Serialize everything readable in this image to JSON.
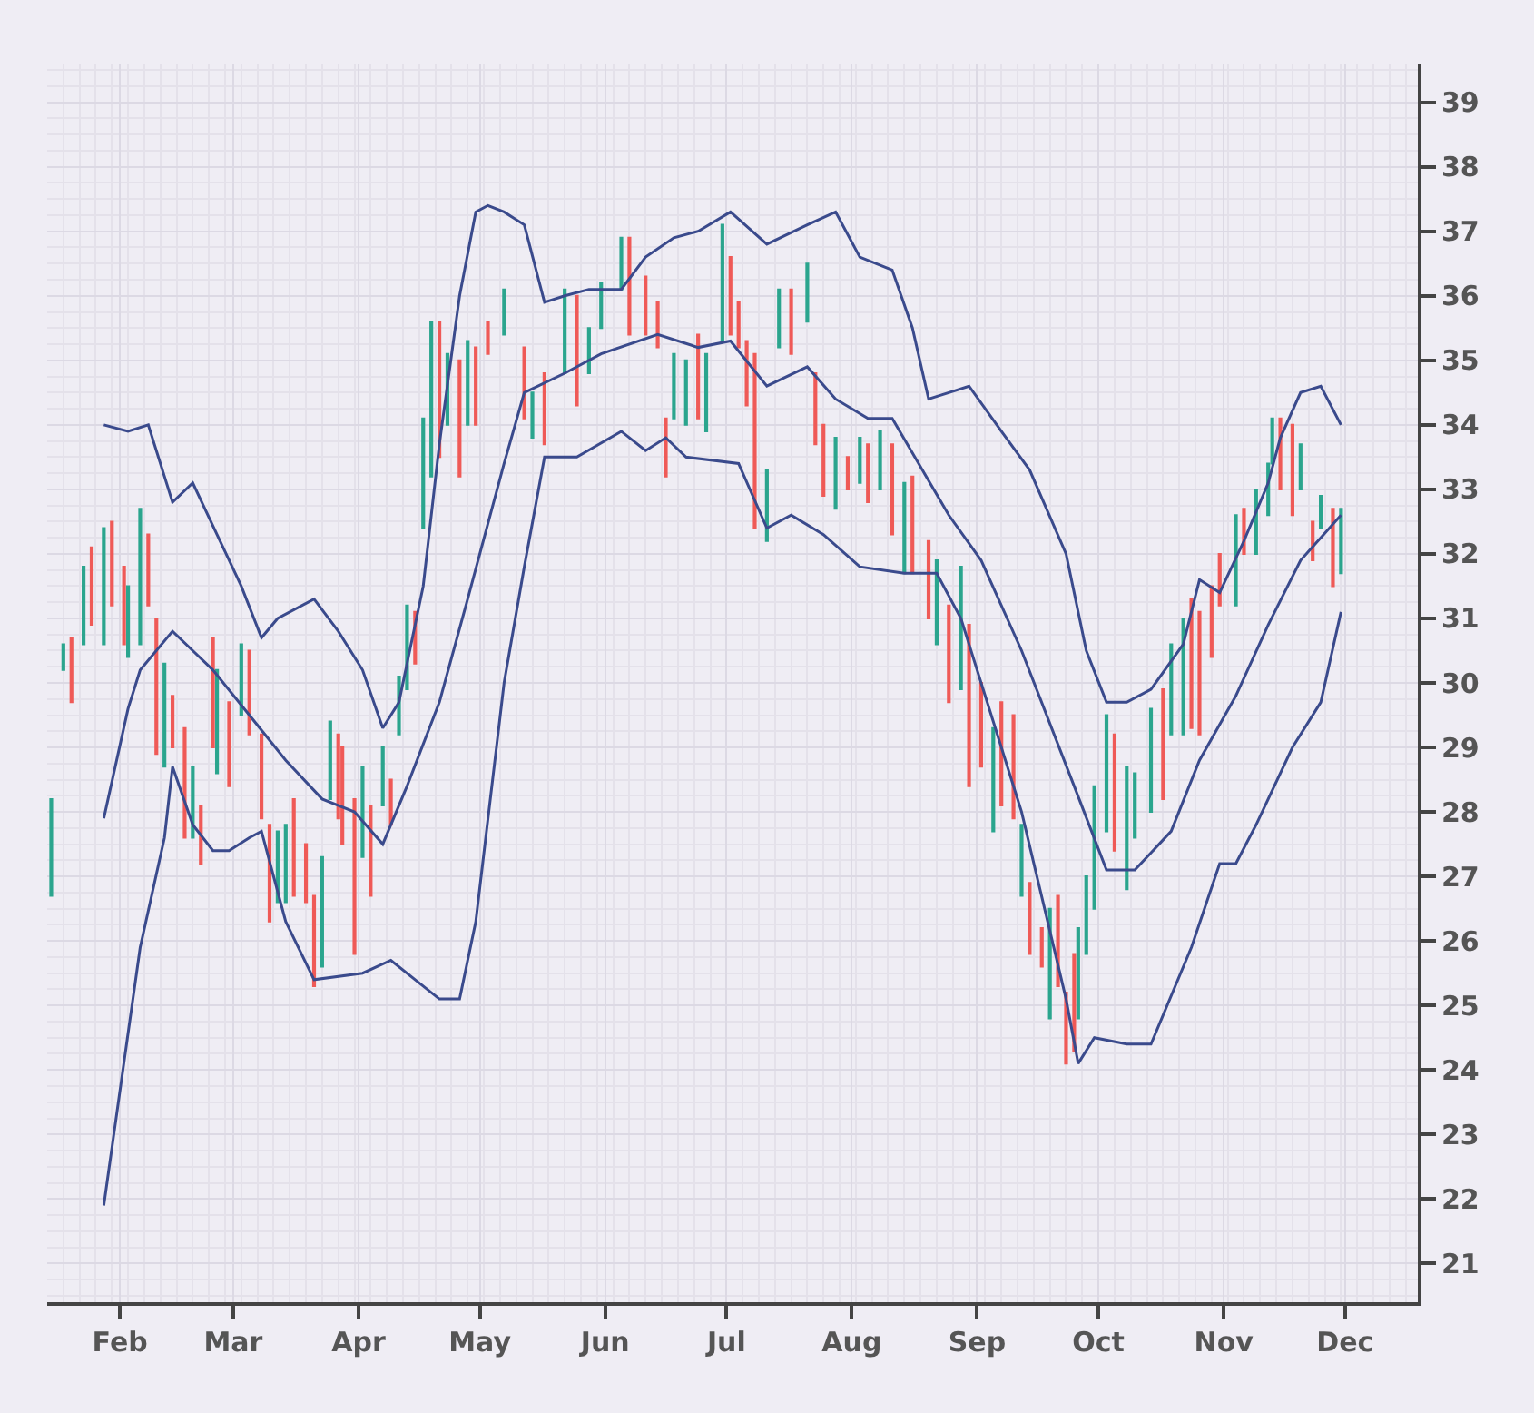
{
  "chart_data": {
    "type": "candlestick",
    "x": [
      "--01-15",
      "--01-18",
      "--01-20",
      "--01-23",
      "--01-25",
      "--01-28",
      "--01-30",
      "--02-02",
      "--02-03",
      "--02-06",
      "--02-08",
      "--02-10",
      "--02-12",
      "--02-14",
      "--02-17",
      "--02-19",
      "--02-21",
      "--02-24",
      "--02-25",
      "--02-28",
      "--03-03",
      "--03-05",
      "--03-08",
      "--03-10",
      "--03-12",
      "--03-14",
      "--03-16",
      "--03-19",
      "--03-21",
      "--03-23",
      "--03-25",
      "--03-27",
      "--03-28",
      "--03-31",
      "--04-02",
      "--04-04",
      "--04-07",
      "--04-09",
      "--04-11",
      "--04-13",
      "--04-15",
      "--04-17",
      "--04-19",
      "--04-21",
      "--04-23",
      "--04-26",
      "--04-28",
      "--04-30",
      "--05-03",
      "--05-07",
      "--05-12",
      "--05-14",
      "--05-17",
      "--05-22",
      "--05-25",
      "--05-28",
      "--05-31",
      "--06-05",
      "--06-07",
      "--06-11",
      "--06-14",
      "--06-16",
      "--06-18",
      "--06-21",
      "--06-24",
      "--06-26",
      "--06-30",
      "--07-02",
      "--07-04",
      "--07-06",
      "--07-08",
      "--07-11",
      "--07-14",
      "--07-17",
      "--07-21",
      "--07-23",
      "--07-25",
      "--07-28",
      "--07-31",
      "--08-03",
      "--08-05",
      "--08-08",
      "--08-11",
      "--08-14",
      "--08-16",
      "--08-20",
      "--08-22",
      "--08-25",
      "--08-28",
      "--08-30",
      "--09-02",
      "--09-05",
      "--09-07",
      "--09-10",
      "--09-12",
      "--09-14",
      "--09-17",
      "--09-19",
      "--09-21",
      "--09-23",
      "--09-25",
      "--09-26",
      "--09-28",
      "--09-30",
      "--10-03",
      "--10-05",
      "--10-08",
      "--10-10",
      "--10-14",
      "--10-17",
      "--10-19",
      "--10-22",
      "--10-24",
      "--10-26",
      "--10-29",
      "--10-31",
      "--11-04",
      "--11-06",
      "--11-09",
      "--11-12",
      "--11-13",
      "--11-15",
      "--11-18",
      "--11-20",
      "--11-23",
      "--11-25",
      "--11-28",
      "--11-30"
    ],
    "ohlc": [
      [
        26.7,
        28.2,
        26.7,
        28.2
      ],
      [
        30.2,
        30.6,
        30.2,
        30.6
      ],
      [
        30.7,
        30.7,
        29.7,
        29.7
      ],
      [
        30.6,
        31.8,
        30.6,
        31.8
      ],
      [
        32.1,
        32.1,
        30.9,
        30.9
      ],
      [
        30.6,
        32.4,
        30.6,
        32.4
      ],
      [
        32.5,
        32.5,
        31.2,
        31.2
      ],
      [
        31.8,
        31.8,
        30.6,
        30.6
      ],
      [
        30.4,
        31.5,
        30.4,
        31.5
      ],
      [
        30.6,
        32.7,
        30.6,
        32.7
      ],
      [
        32.3,
        32.3,
        31.2,
        31.2
      ],
      [
        31.0,
        31.0,
        28.9,
        28.9
      ],
      [
        28.7,
        30.3,
        28.7,
        30.3
      ],
      [
        29.8,
        29.8,
        29.0,
        29.0
      ],
      [
        29.3,
        29.3,
        27.6,
        27.6
      ],
      [
        27.6,
        28.7,
        27.6,
        28.7
      ],
      [
        28.1,
        28.1,
        27.2,
        27.2
      ],
      [
        30.7,
        30.7,
        29.0,
        29.0
      ],
      [
        28.6,
        30.2,
        28.6,
        30.2
      ],
      [
        29.7,
        29.7,
        28.4,
        28.4
      ],
      [
        29.5,
        30.6,
        29.5,
        30.6
      ],
      [
        30.5,
        30.5,
        29.2,
        29.2
      ],
      [
        29.2,
        29.2,
        27.9,
        27.9
      ],
      [
        27.8,
        27.8,
        26.3,
        26.3
      ],
      [
        26.6,
        27.7,
        26.6,
        27.7
      ],
      [
        26.6,
        27.8,
        26.6,
        27.8
      ],
      [
        28.2,
        28.2,
        26.7,
        26.7
      ],
      [
        27.5,
        27.5,
        26.6,
        26.6
      ],
      [
        26.7,
        26.7,
        25.3,
        25.3
      ],
      [
        25.6,
        27.3,
        25.6,
        27.3
      ],
      [
        28.2,
        29.4,
        28.2,
        29.4
      ],
      [
        29.2,
        29.2,
        27.9,
        27.9
      ],
      [
        29.0,
        29.0,
        27.5,
        27.5
      ],
      [
        28.2,
        28.2,
        25.8,
        25.8
      ],
      [
        27.3,
        28.7,
        27.3,
        28.7
      ],
      [
        28.1,
        28.1,
        26.7,
        26.7
      ],
      [
        28.1,
        29.0,
        28.1,
        29.0
      ],
      [
        28.5,
        28.5,
        27.8,
        27.8
      ],
      [
        29.2,
        30.1,
        29.2,
        30.1
      ],
      [
        29.9,
        31.2,
        29.9,
        31.2
      ],
      [
        31.1,
        31.1,
        30.3,
        30.3
      ],
      [
        32.4,
        34.1,
        32.4,
        34.1
      ],
      [
        33.2,
        35.6,
        33.2,
        35.6
      ],
      [
        35.6,
        35.6,
        33.5,
        33.5
      ],
      [
        34.0,
        35.1,
        34.0,
        35.1
      ],
      [
        35.0,
        35.0,
        33.2,
        33.2
      ],
      [
        34.0,
        35.3,
        34.0,
        35.3
      ],
      [
        35.2,
        35.2,
        34.0,
        34.0
      ],
      [
        35.6,
        35.6,
        35.1,
        35.1
      ],
      [
        35.4,
        36.1,
        35.4,
        36.1
      ],
      [
        35.2,
        35.2,
        34.1,
        34.1
      ],
      [
        33.8,
        34.5,
        33.8,
        34.5
      ],
      [
        34.8,
        34.8,
        33.7,
        33.7
      ],
      [
        34.8,
        36.1,
        34.8,
        36.1
      ],
      [
        36.0,
        36.0,
        34.3,
        34.3
      ],
      [
        34.8,
        35.5,
        34.8,
        35.5
      ],
      [
        35.5,
        36.2,
        35.5,
        36.2
      ],
      [
        36.1,
        36.9,
        36.1,
        36.9
      ],
      [
        36.9,
        36.9,
        35.4,
        35.4
      ],
      [
        36.3,
        36.3,
        35.4,
        35.4
      ],
      [
        35.9,
        35.9,
        35.2,
        35.2
      ],
      [
        34.1,
        34.1,
        33.2,
        33.2
      ],
      [
        34.1,
        35.1,
        34.1,
        35.1
      ],
      [
        34.0,
        35.0,
        34.0,
        35.0
      ],
      [
        35.4,
        35.4,
        34.1,
        34.1
      ],
      [
        33.9,
        35.1,
        33.9,
        35.1
      ],
      [
        35.3,
        37.1,
        35.3,
        37.1
      ],
      [
        36.6,
        36.6,
        35.4,
        35.4
      ],
      [
        35.9,
        35.9,
        35.2,
        35.2
      ],
      [
        35.3,
        35.3,
        34.3,
        34.3
      ],
      [
        35.1,
        35.1,
        32.4,
        32.4
      ],
      [
        32.2,
        33.3,
        32.2,
        33.3
      ],
      [
        35.2,
        36.1,
        35.2,
        36.1
      ],
      [
        36.1,
        36.1,
        35.1,
        35.1
      ],
      [
        35.6,
        36.5,
        35.6,
        36.5
      ],
      [
        34.8,
        34.8,
        33.7,
        33.7
      ],
      [
        34.0,
        34.0,
        32.9,
        32.9
      ],
      [
        32.7,
        33.8,
        32.7,
        33.8
      ],
      [
        33.5,
        33.5,
        33.0,
        33.0
      ],
      [
        33.1,
        33.8,
        33.1,
        33.8
      ],
      [
        33.7,
        33.7,
        32.8,
        32.8
      ],
      [
        33.0,
        33.9,
        33.0,
        33.9
      ],
      [
        33.7,
        33.7,
        32.3,
        32.3
      ],
      [
        31.7,
        33.1,
        31.7,
        33.1
      ],
      [
        33.2,
        33.2,
        31.7,
        31.7
      ],
      [
        32.2,
        32.2,
        31.0,
        31.0
      ],
      [
        30.6,
        31.9,
        30.6,
        31.9
      ],
      [
        31.2,
        31.2,
        29.7,
        29.7
      ],
      [
        29.9,
        31.8,
        29.9,
        31.8
      ],
      [
        30.9,
        30.9,
        28.4,
        28.4
      ],
      [
        30.0,
        30.0,
        28.7,
        28.7
      ],
      [
        27.7,
        29.3,
        27.7,
        29.3
      ],
      [
        29.7,
        29.7,
        28.1,
        28.1
      ],
      [
        29.5,
        29.5,
        27.9,
        27.9
      ],
      [
        26.7,
        27.8,
        26.7,
        27.8
      ],
      [
        26.9,
        26.9,
        25.8,
        25.8
      ],
      [
        26.2,
        26.2,
        25.6,
        25.6
      ],
      [
        24.8,
        26.5,
        24.8,
        26.5
      ],
      [
        26.7,
        26.7,
        25.3,
        25.3
      ],
      [
        25.2,
        25.2,
        24.1,
        24.1
      ],
      [
        25.8,
        25.8,
        24.3,
        24.3
      ],
      [
        24.8,
        26.2,
        24.8,
        26.2
      ],
      [
        25.8,
        27.0,
        25.8,
        27.0
      ],
      [
        26.5,
        28.4,
        26.5,
        28.4
      ],
      [
        27.7,
        29.5,
        27.7,
        29.5
      ],
      [
        29.2,
        29.2,
        27.4,
        27.4
      ],
      [
        26.8,
        28.7,
        26.8,
        28.7
      ],
      [
        27.6,
        28.6,
        27.6,
        28.6
      ],
      [
        28.0,
        29.6,
        28.0,
        29.6
      ],
      [
        29.9,
        29.9,
        28.2,
        28.2
      ],
      [
        29.2,
        30.6,
        29.2,
        30.6
      ],
      [
        29.2,
        31.0,
        29.2,
        31.0
      ],
      [
        31.3,
        31.3,
        29.3,
        29.3
      ],
      [
        31.1,
        31.1,
        29.2,
        29.2
      ],
      [
        31.5,
        31.5,
        30.4,
        30.4
      ],
      [
        32.0,
        32.0,
        31.2,
        31.2
      ],
      [
        31.2,
        32.6,
        31.2,
        32.6
      ],
      [
        32.7,
        32.7,
        32.0,
        32.0
      ],
      [
        32.0,
        33.0,
        32.0,
        33.0
      ],
      [
        32.6,
        33.4,
        32.6,
        33.4
      ],
      [
        33.4,
        34.1,
        33.4,
        34.1
      ],
      [
        34.1,
        34.1,
        33.0,
        33.0
      ],
      [
        34.0,
        34.0,
        32.6,
        32.6
      ],
      [
        33.0,
        33.7,
        33.0,
        33.7
      ],
      [
        32.5,
        32.5,
        31.9,
        31.9
      ],
      [
        32.4,
        32.9,
        32.4,
        32.9
      ],
      [
        32.7,
        32.7,
        31.5,
        31.5
      ],
      [
        31.7,
        32.7,
        31.7,
        32.7
      ]
    ],
    "colors": [
      "#2ba58e",
      "#2ba58e",
      "#ef5a57",
      "#2ba58e",
      "#ef5a57",
      "#2ba58e",
      "#ef5a57",
      "#ef5a57",
      "#2ba58e",
      "#2ba58e",
      "#ef5a57",
      "#ef5a57",
      "#2ba58e",
      "#ef5a57",
      "#ef5a57",
      "#2ba58e",
      "#ef5a57",
      "#ef5a57",
      "#2ba58e",
      "#ef5a57",
      "#2ba58e",
      "#ef5a57",
      "#ef5a57",
      "#ef5a57",
      "#2ba58e",
      "#2ba58e",
      "#ef5a57",
      "#ef5a57",
      "#ef5a57",
      "#2ba58e",
      "#2ba58e",
      "#ef5a57",
      "#ef5a57",
      "#ef5a57",
      "#2ba58e",
      "#ef5a57",
      "#2ba58e",
      "#ef5a57",
      "#2ba58e",
      "#2ba58e",
      "#ef5a57",
      "#2ba58e",
      "#2ba58e",
      "#ef5a57",
      "#2ba58e",
      "#ef5a57",
      "#2ba58e",
      "#ef5a57",
      "#ef5a57",
      "#2ba58e",
      "#ef5a57",
      "#2ba58e",
      "#ef5a57",
      "#2ba58e",
      "#ef5a57",
      "#2ba58e",
      "#2ba58e",
      "#2ba58e",
      "#ef5a57",
      "#ef5a57",
      "#ef5a57",
      "#ef5a57",
      "#2ba58e",
      "#2ba58e",
      "#ef5a57",
      "#2ba58e",
      "#2ba58e",
      "#ef5a57",
      "#ef5a57",
      "#ef5a57",
      "#ef5a57",
      "#2ba58e",
      "#2ba58e",
      "#ef5a57",
      "#2ba58e",
      "#ef5a57",
      "#ef5a57",
      "#2ba58e",
      "#ef5a57",
      "#2ba58e",
      "#ef5a57",
      "#2ba58e",
      "#ef5a57",
      "#2ba58e",
      "#ef5a57",
      "#ef5a57",
      "#2ba58e",
      "#ef5a57",
      "#2ba58e",
      "#ef5a57",
      "#ef5a57",
      "#2ba58e",
      "#ef5a57",
      "#ef5a57",
      "#2ba58e",
      "#ef5a57",
      "#ef5a57",
      "#2ba58e",
      "#ef5a57",
      "#ef5a57",
      "#ef5a57",
      "#2ba58e",
      "#2ba58e",
      "#2ba58e",
      "#2ba58e",
      "#ef5a57",
      "#2ba58e",
      "#2ba58e",
      "#2ba58e",
      "#ef5a57",
      "#2ba58e",
      "#2ba58e",
      "#ef5a57",
      "#ef5a57",
      "#ef5a57",
      "#ef5a57",
      "#2ba58e",
      "#ef5a57",
      "#2ba58e",
      "#2ba58e",
      "#2ba58e",
      "#ef5a57",
      "#ef5a57",
      "#2ba58e",
      "#ef5a57",
      "#2ba58e",
      "#ef5a57",
      "#2ba58e"
    ],
    "series": [
      {
        "type": "line",
        "color": "#3a4a8c",
        "x": [
          "--01-28",
          "--02-03",
          "--02-08",
          "--02-14",
          "--02-19",
          "--02-25",
          "--03-03",
          "--03-08",
          "--03-12",
          "--03-21",
          "--03-27",
          "--04-02",
          "--04-07",
          "--04-11",
          "--04-17",
          "--04-21",
          "--04-26",
          "--04-30",
          "--05-03",
          "--05-07",
          "--05-12",
          "--05-17",
          "--05-22",
          "--05-28",
          "--06-05",
          "--06-11",
          "--06-18",
          "--06-24",
          "--07-02",
          "--07-11",
          "--07-21",
          "--07-28",
          "--08-03",
          "--08-11",
          "--08-16",
          "--08-20",
          "--08-25",
          "--08-30",
          "--09-07",
          "--09-14",
          "--09-23",
          "--09-28",
          "--10-03",
          "--10-08",
          "--10-14",
          "--10-22",
          "--10-26",
          "--10-31",
          "--11-06",
          "--11-12",
          "--11-15",
          "--11-20",
          "--11-25",
          "--11-30"
        ],
        "values": [
          34.0,
          33.9,
          34.0,
          32.8,
          33.1,
          32.3,
          31.5,
          30.7,
          31.0,
          31.3,
          30.8,
          30.2,
          29.3,
          29.7,
          31.5,
          33.7,
          36.0,
          37.3,
          37.4,
          37.3,
          37.1,
          35.9,
          36.0,
          36.1,
          36.1,
          36.6,
          36.9,
          37.0,
          37.3,
          36.8,
          37.1,
          37.3,
          36.6,
          36.4,
          35.5,
          34.4,
          34.5,
          34.6,
          33.9,
          33.3,
          32.0,
          30.5,
          29.7,
          29.7,
          29.9,
          30.6,
          31.6,
          31.4,
          32.2,
          33.1,
          33.8,
          34.5,
          34.6,
          34.0
        ]
      },
      {
        "type": "line",
        "color": "#3a4a8c",
        "x": [
          "--01-28",
          "--02-03",
          "--02-06",
          "--02-14",
          "--02-19",
          "--02-24",
          "--03-05",
          "--03-14",
          "--03-23",
          "--03-31",
          "--04-07",
          "--04-13",
          "--04-21",
          "--04-28",
          "--05-07",
          "--05-12",
          "--05-22",
          "--05-31",
          "--06-14",
          "--06-24",
          "--07-02",
          "--07-11",
          "--07-21",
          "--07-28",
          "--08-05",
          "--08-11",
          "--08-25",
          "--09-02",
          "--09-12",
          "--09-25",
          "--10-03",
          "--10-10",
          "--10-19",
          "--10-26",
          "--11-04",
          "--11-12",
          "--11-20",
          "--11-30"
        ],
        "values": [
          27.9,
          29.6,
          30.2,
          30.8,
          30.5,
          30.2,
          29.5,
          28.8,
          28.2,
          28.0,
          27.5,
          28.4,
          29.7,
          31.3,
          33.4,
          34.5,
          34.8,
          35.1,
          35.4,
          35.2,
          35.3,
          34.6,
          34.9,
          34.4,
          34.1,
          34.1,
          32.6,
          31.9,
          30.5,
          28.4,
          27.1,
          27.1,
          27.7,
          28.8,
          29.8,
          30.9,
          31.9,
          32.6
        ]
      },
      {
        "type": "line",
        "color": "#3a4a8c",
        "x": [
          "--01-28",
          "--02-06",
          "--02-12",
          "--02-14",
          "--02-19",
          "--02-24",
          "--02-28",
          "--03-05",
          "--03-08",
          "--03-14",
          "--03-21",
          "--04-02",
          "--04-09",
          "--04-15",
          "--04-21",
          "--04-26",
          "--04-30",
          "--05-07",
          "--05-12",
          "--05-17",
          "--05-25",
          "--06-05",
          "--06-11",
          "--06-16",
          "--06-21",
          "--07-04",
          "--07-11",
          "--07-17",
          "--07-25",
          "--08-03",
          "--08-14",
          "--08-22",
          "--08-28",
          "--09-12",
          "--09-23",
          "--09-26",
          "--09-30",
          "--10-08",
          "--10-14",
          "--10-24",
          "--10-31",
          "--11-04",
          "--11-09",
          "--11-18",
          "--11-25",
          "--11-30"
        ],
        "values": [
          21.9,
          25.9,
          27.6,
          28.7,
          27.8,
          27.4,
          27.4,
          27.6,
          27.7,
          26.3,
          25.4,
          25.5,
          25.7,
          25.4,
          25.1,
          25.1,
          26.3,
          30.0,
          31.8,
          33.5,
          33.5,
          33.9,
          33.6,
          33.8,
          33.5,
          33.4,
          32.4,
          32.6,
          32.3,
          31.8,
          31.7,
          31.7,
          31.0,
          28.0,
          25.1,
          24.1,
          24.5,
          24.4,
          24.4,
          25.9,
          27.2,
          27.2,
          27.8,
          29.0,
          29.7,
          31.1
        ]
      }
    ],
    "xlim": [
      "--01-14",
      "--12-19"
    ],
    "xticks": [
      {
        "value": "--02-01",
        "label": "Feb"
      },
      {
        "value": "--03-01",
        "label": "Mar"
      },
      {
        "value": "--04-01",
        "label": "Apr"
      },
      {
        "value": "--05-01",
        "label": "May"
      },
      {
        "value": "--06-01",
        "label": "Jun"
      },
      {
        "value": "--07-01",
        "label": "Jul"
      },
      {
        "value": "--08-01",
        "label": "Aug"
      },
      {
        "value": "--09-01",
        "label": "Sep"
      },
      {
        "value": "--10-01",
        "label": "Oct"
      },
      {
        "value": "--11-01",
        "label": "Nov"
      },
      {
        "value": "--12-01",
        "label": "Dec"
      }
    ],
    "ylim": [
      20.4,
      39.6
    ],
    "yticks": [
      21,
      22,
      23,
      24,
      25,
      26,
      27,
      28,
      29,
      30,
      31,
      32,
      33,
      34,
      35,
      36,
      37,
      38,
      39
    ],
    "grid": true
  }
}
